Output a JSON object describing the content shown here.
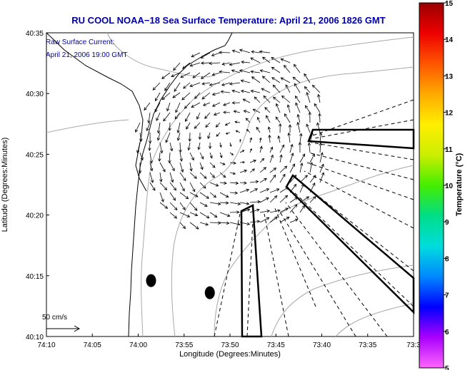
{
  "chart_data": {
    "type": "vector-field-map",
    "title": "RU COOL  NOAA−18  Sea Surface Temperature:  April 21, 2006 1826 GMT",
    "annotation_lines": [
      "Raw Surface Current:",
      "April 21, 2006 19:00 GMT"
    ],
    "xlabel": "Longitude (Degrees:Minutes)",
    "ylabel": "Latitude (Degrees:Minutes)",
    "x_ticks": [
      "74:10",
      "74:05",
      "74:00",
      "73:55",
      "73:50",
      "73:45",
      "73:40",
      "73:35",
      "73:3"
    ],
    "y_ticks": [
      "40:35",
      "40:30",
      "40:25",
      "40:20",
      "40:15",
      "40:10"
    ],
    "xlim": [
      -74.1667,
      -73.5
    ],
    "ylim": [
      40.1667,
      40.5833
    ],
    "scale_label": "50 cm/s",
    "colorbar": {
      "label": "Temperature (°C)",
      "ticks": [
        "5",
        "6",
        "7",
        "8",
        "9",
        "10",
        "11",
        "12",
        "13",
        "14",
        "15"
      ],
      "range": [
        5,
        15
      ],
      "colors": [
        "#ff66ff",
        "#aa00ff",
        "#0000ff",
        "#0088ff",
        "#00dddd",
        "#00dd88",
        "#44ee00",
        "#ccee00",
        "#ffee00",
        "#ffaa00",
        "#ff5500",
        "#ee0000",
        "#990000"
      ]
    },
    "eddy_center": {
      "lon": -73.8233,
      "lat": 40.4333
    },
    "eddy_radius_deg": 0.123,
    "markers": [
      {
        "lon": -73.9767,
        "lat": 40.2433
      },
      {
        "lon": -73.87,
        "lat": 40.2267
      }
    ]
  }
}
